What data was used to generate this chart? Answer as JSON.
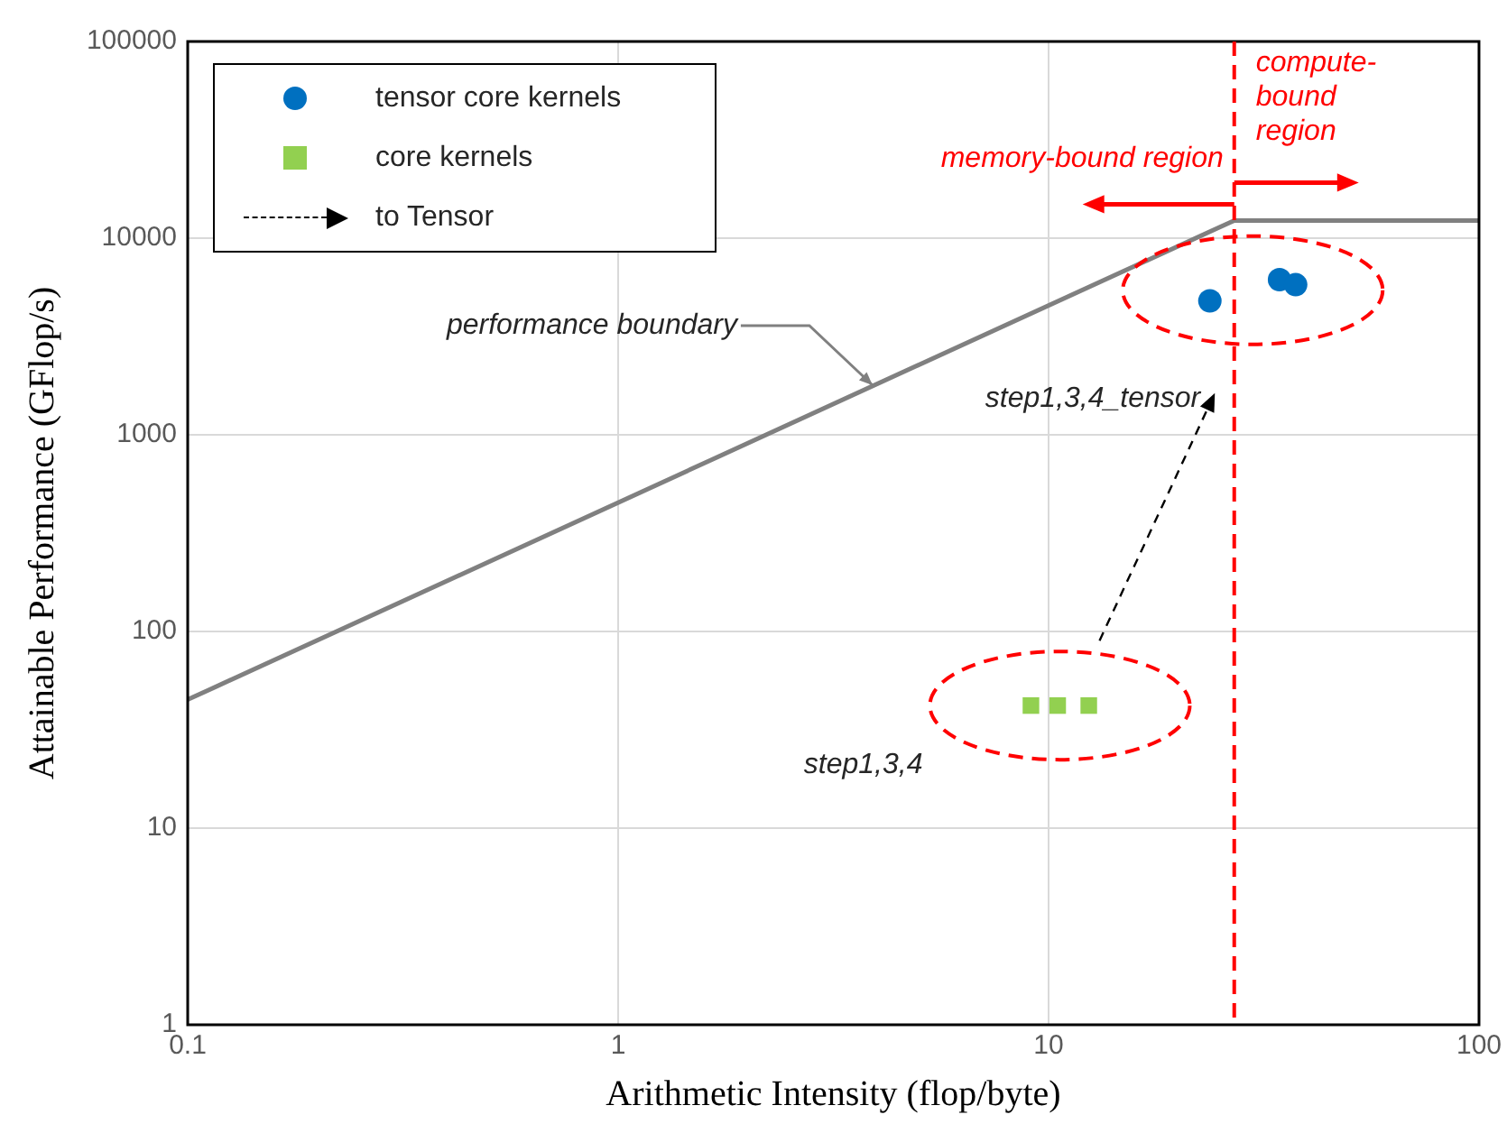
{
  "chart_data": {
    "type": "scatter",
    "xlabel": "Arithmetic Intensity (flop/byte)",
    "ylabel": "Attainable Performance (GFlop/s)",
    "log": "xy",
    "grid": true,
    "legend": "top left",
    "xlim": [
      0.1,
      100
    ],
    "xticks": [
      0.1,
      1,
      10,
      100
    ],
    "ylim": [
      1,
      100000
    ],
    "yticks": [
      1,
      10,
      100,
      1000,
      10000,
      100000
    ],
    "series": [
      {
        "name": "tensor core kernels",
        "type": "scatter",
        "marker": "circle",
        "color": "#0070c0",
        "x": [
          23.7,
          34.4,
          37.5
        ],
        "values": [
          4800,
          6150,
          5800
        ]
      },
      {
        "name": "core kernels",
        "type": "scatter",
        "marker": "square",
        "color": "#92d050",
        "x": [
          9.1,
          10.5,
          12.4
        ],
        "values": [
          42,
          42,
          42
        ]
      },
      {
        "type": "line",
        "marker": "none",
        "line_style": "solid",
        "color": "#808080",
        "x": [
          0.1,
          27,
          100
        ],
        "values": [
          45,
          12300,
          12300
        ]
      }
    ],
    "ref_lines": [
      {
        "axis": "x",
        "value": 27,
        "color": "#ff0000",
        "line_style": "dashed"
      }
    ],
    "annotations": [
      {
        "text": "performance boundary",
        "x": 3.9,
        "y": 1750
      },
      "step1,3,4_tensor",
      "step1,3,4",
      "memory-bound region",
      "compute-bound region",
      "to Tensor"
    ]
  }
}
